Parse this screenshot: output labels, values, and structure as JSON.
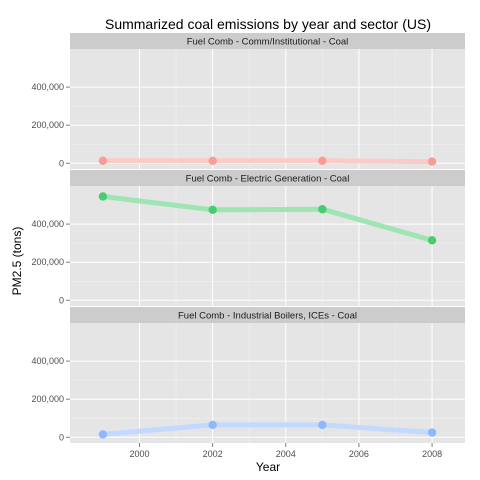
{
  "chart_data": {
    "type": "line",
    "title": "Summarized coal emissions by year and sector (US)",
    "xlabel": "Year",
    "ylabel": "PM2.5 (tons)",
    "x": [
      1999,
      2002,
      2005,
      2008
    ],
    "xlim": [
      1998.1,
      2008.9
    ],
    "x_ticks": [
      2000,
      2002,
      2004,
      2006,
      2008
    ],
    "x_tick_labels": [
      "2000",
      "2002",
      "2004",
      "2006",
      "2008"
    ],
    "ylim": [
      -30000,
      600000
    ],
    "y_ticks": [
      0,
      200000,
      400000
    ],
    "y_tick_labels": [
      "0",
      "200,000",
      "400,000"
    ],
    "grid": true,
    "facets": [
      {
        "label": "Fuel Comb - Comm/Institutional - Coal",
        "color": "#F8766D",
        "values": [
          13000,
          13000,
          13000,
          9000
        ]
      },
      {
        "label": "Fuel Comb - Electric Generation - Coal",
        "color": "#00BA38",
        "values": [
          545000,
          475000,
          478000,
          315000
        ]
      },
      {
        "label": "Fuel Comb - Industrial Boilers, ICEs - Coal",
        "color": "#619CFF",
        "values": [
          15000,
          65000,
          65000,
          25000
        ]
      }
    ]
  }
}
